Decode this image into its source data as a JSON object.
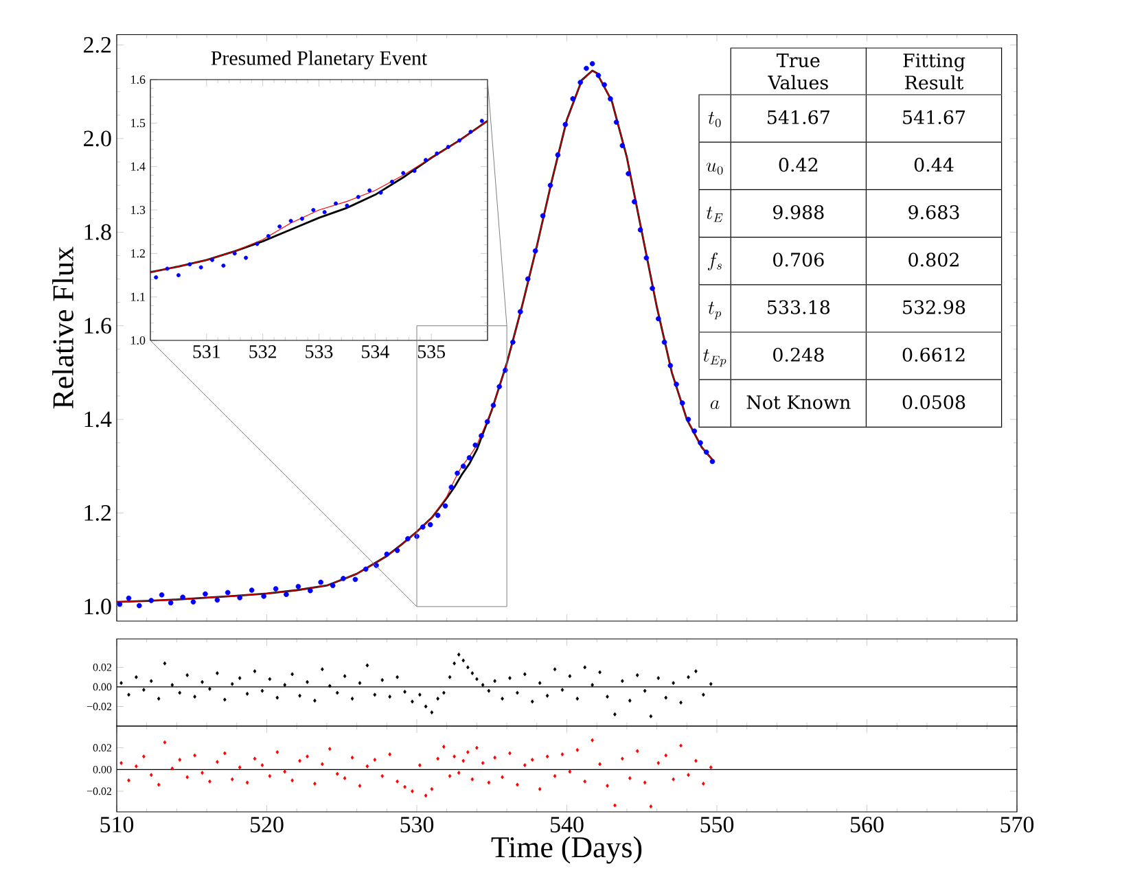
{
  "chart_data": [
    {
      "type": "scatter",
      "ylabel": "Relative Flux",
      "xlim": [
        510,
        570
      ],
      "ylim": [
        0.969,
        2.222
      ],
      "xticks": [
        510,
        520,
        530,
        540,
        550,
        560,
        570
      ],
      "yticks": [
        {
          "value": 1,
          "label": "1.0"
        },
        1.2,
        1.4,
        1.6,
        1.8,
        {
          "value": 2,
          "label": "2.0"
        },
        2.2
      ],
      "tick_labels": "y",
      "series": [
        {
          "type": "scatter",
          "marker": "circle",
          "color": "#0000ff",
          "x": [
            510.2,
            510.8,
            511.5,
            512.3,
            513.0,
            513.6,
            514.4,
            515.1,
            515.9,
            516.7,
            517.4,
            518.2,
            519.0,
            519.8,
            520.6,
            521.3,
            522.1,
            522.9,
            523.6,
            524.4,
            525.1,
            525.9,
            526.6,
            527.3,
            528.0,
            528.7,
            529.4,
            530.0,
            530.4,
            530.9,
            531.4,
            531.9,
            532.3,
            532.7,
            533.1,
            533.5,
            533.9,
            534.3,
            534.7,
            535.1,
            535.5,
            535.9,
            536.4,
            536.9,
            537.4,
            537.9,
            538.4,
            538.9,
            539.4,
            539.9,
            540.4,
            540.9,
            541.3,
            541.7,
            542.1,
            542.5,
            542.9,
            543.3,
            543.7,
            544.1,
            544.5,
            544.9,
            545.3,
            545.7,
            546.1,
            546.5,
            546.9,
            547.3,
            547.7,
            548.1,
            548.5,
            548.9,
            549.3,
            549.7
          ],
          "values": [
            1.005,
            1.018,
            1.002,
            1.013,
            1.025,
            1.008,
            1.02,
            1.01,
            1.027,
            1.014,
            1.03,
            1.019,
            1.035,
            1.022,
            1.038,
            1.026,
            1.043,
            1.034,
            1.052,
            1.045,
            1.06,
            1.058,
            1.08,
            1.088,
            1.112,
            1.12,
            1.145,
            1.15,
            1.17,
            1.175,
            1.195,
            1.215,
            1.255,
            1.285,
            1.3,
            1.318,
            1.345,
            1.365,
            1.395,
            1.43,
            1.47,
            1.505,
            1.565,
            1.63,
            1.7,
            1.76,
            1.835,
            1.9,
            1.965,
            2.03,
            2.085,
            2.12,
            2.15,
            2.16,
            2.135,
            2.115,
            2.085,
            2.035,
            1.985,
            1.925,
            1.865,
            1.805,
            1.745,
            1.68,
            1.615,
            1.565,
            1.515,
            1.475,
            1.435,
            1.4,
            1.375,
            1.35,
            1.33,
            1.31
          ]
        },
        {
          "type": "line",
          "marker": "none",
          "color": "#000000",
          "x": [
            510,
            512,
            514,
            516,
            518,
            520,
            522,
            524,
            526,
            527,
            528,
            529,
            530,
            531,
            532,
            532.5,
            533,
            533.5,
            534,
            535,
            536,
            537,
            538,
            539,
            540,
            541,
            541.7,
            542,
            543,
            544,
            545,
            546,
            547,
            548,
            549,
            549.8
          ],
          "values": [
            1.01,
            1.012,
            1.015,
            1.019,
            1.023,
            1.028,
            1.035,
            1.045,
            1.07,
            1.089,
            1.108,
            1.133,
            1.16,
            1.19,
            1.232,
            1.255,
            1.282,
            1.305,
            1.335,
            1.42,
            1.52,
            1.64,
            1.77,
            1.91,
            2.04,
            2.125,
            2.145,
            2.14,
            2.08,
            1.96,
            1.8,
            1.64,
            1.5,
            1.4,
            1.34,
            1.31
          ]
        },
        {
          "type": "line",
          "marker": "none",
          "color": "#ff0000",
          "x": [
            510,
            512,
            514,
            516,
            518,
            520,
            522,
            524,
            526,
            527,
            528,
            529,
            530,
            531,
            532,
            532.5,
            533,
            533.5,
            534,
            535,
            536,
            537,
            538,
            539,
            540,
            541,
            541.7,
            542,
            543,
            544,
            545,
            546,
            547,
            548,
            549,
            549.8
          ],
          "values": [
            1.01,
            1.012,
            1.015,
            1.019,
            1.023,
            1.028,
            1.035,
            1.045,
            1.07,
            1.089,
            1.108,
            1.133,
            1.16,
            1.19,
            1.235,
            1.27,
            1.3,
            1.32,
            1.345,
            1.42,
            1.52,
            1.64,
            1.77,
            1.91,
            2.04,
            2.125,
            2.145,
            2.14,
            2.08,
            1.96,
            1.8,
            1.64,
            1.5,
            1.4,
            1.34,
            1.31
          ]
        }
      ]
    },
    {
      "type": "scatter",
      "title": "Presumed Planetary Event",
      "xlim": [
        530,
        536
      ],
      "ylim": [
        1.0,
        1.6
      ],
      "xticks": [
        531,
        532,
        533,
        534,
        535
      ],
      "yticks": [
        {
          "value": 1,
          "label": "1.0"
        },
        1.1,
        1.2,
        1.3,
        1.4,
        1.5,
        1.6
      ],
      "series": [
        {
          "type": "scatter",
          "marker": "circle",
          "color": "#0000ff",
          "x": [
            530.1,
            530.3,
            530.5,
            530.7,
            530.9,
            531.1,
            531.3,
            531.5,
            531.7,
            531.9,
            532.1,
            532.3,
            532.5,
            532.7,
            532.9,
            533.1,
            533.3,
            533.5,
            533.7,
            533.9,
            534.1,
            534.3,
            534.5,
            534.7,
            534.9,
            535.1,
            535.3,
            535.5,
            535.7,
            535.9
          ],
          "values": [
            1.145,
            1.165,
            1.15,
            1.175,
            1.168,
            1.185,
            1.172,
            1.2,
            1.19,
            1.222,
            1.24,
            1.262,
            1.275,
            1.28,
            1.3,
            1.295,
            1.315,
            1.31,
            1.33,
            1.345,
            1.34,
            1.365,
            1.385,
            1.39,
            1.415,
            1.43,
            1.445,
            1.46,
            1.48,
            1.505
          ]
        },
        {
          "type": "line",
          "marker": "none",
          "color": "#000000",
          "x": [
            530,
            530.5,
            531,
            531.5,
            532,
            532.5,
            533,
            533.5,
            534,
            534.5,
            535,
            535.5,
            536
          ],
          "values": [
            1.157,
            1.17,
            1.185,
            1.205,
            1.228,
            1.255,
            1.282,
            1.305,
            1.335,
            1.375,
            1.42,
            1.46,
            1.505
          ]
        },
        {
          "type": "line",
          "marker": "none",
          "color": "#ff0000",
          "x": [
            530,
            530.5,
            531,
            531.5,
            532,
            532.5,
            533,
            533.5,
            534,
            534.5,
            535,
            535.5,
            536
          ],
          "values": [
            1.157,
            1.17,
            1.185,
            1.205,
            1.232,
            1.27,
            1.3,
            1.32,
            1.345,
            1.38,
            1.42,
            1.46,
            1.505
          ]
        }
      ]
    },
    {
      "type": "other",
      "categories": [
        "True Values",
        "Fitting Result"
      ],
      "y_categories": [
        "t_{0}",
        "u_{0}",
        "t_{E}",
        "f_{s}",
        "t_{p}",
        "t_{Ep}",
        "a"
      ],
      "cell_labels": [
        [
          "541.67",
          "541.67"
        ],
        [
          "0.42",
          "0.44"
        ],
        [
          "9.988",
          "9.683"
        ],
        [
          "0.706",
          "0.802"
        ],
        [
          "533.18",
          "532.98"
        ],
        [
          "0.248",
          "0.6612"
        ],
        [
          "Not Known",
          "0.0508"
        ]
      ]
    },
    {
      "type": "scatter",
      "xlim": [
        510,
        570
      ],
      "ylim": [
        -0.04,
        0.049
      ],
      "xticks": [
        510,
        520,
        530,
        540,
        550,
        560,
        570
      ],
      "yticks": [
        {
          "value": -0.02,
          "label": "−0.02"
        },
        {
          "value": 0,
          "label": "0.00"
        },
        0.02
      ],
      "tick_labels": "y",
      "marker": "diamond",
      "ref_lines": [
        {
          "axis": "y",
          "value": 0,
          "color": "#000000"
        }
      ],
      "x": [
        510.3,
        510.8,
        511.3,
        511.8,
        512.3,
        512.8,
        513.2,
        513.7,
        514.2,
        514.7,
        515.2,
        515.7,
        516.2,
        516.7,
        517.2,
        517.7,
        518.2,
        518.7,
        519.2,
        519.7,
        520.2,
        520.7,
        521.2,
        521.7,
        522.2,
        522.7,
        523.2,
        523.7,
        524.2,
        524.7,
        525.2,
        525.7,
        526.2,
        526.7,
        527.2,
        527.7,
        528.2,
        528.7,
        529.2,
        529.7,
        530.2,
        530.6,
        531.0,
        531.4,
        531.8,
        532.2,
        532.5,
        532.8,
        533.1,
        533.4,
        533.7,
        534.0,
        534.4,
        534.8,
        535.2,
        535.7,
        536.2,
        536.7,
        537.2,
        537.7,
        538.2,
        538.7,
        539.2,
        539.7,
        540.2,
        540.7,
        541.2,
        541.7,
        542.2,
        542.7,
        543.2,
        543.7,
        544.2,
        544.7,
        545.2,
        545.6,
        546.1,
        546.6,
        547.1,
        547.6,
        548.1,
        548.6,
        549.1,
        549.6
      ],
      "series": [
        {
          "color": "#000000",
          "values": [
            0.004,
            -0.008,
            0.01,
            -0.003,
            0.006,
            -0.012,
            0.024,
            0.002,
            -0.006,
            0.012,
            -0.01,
            0.005,
            -0.002,
            0.014,
            -0.013,
            0.003,
            0.009,
            -0.007,
            0.016,
            -0.004,
            0.008,
            -0.011,
            0.002,
            0.013,
            -0.009,
            0.005,
            -0.014,
            0.018,
            0.001,
            -0.006,
            0.011,
            -0.012,
            0.004,
            0.022,
            -0.008,
            0.007,
            -0.01,
            0.01,
            -0.005,
            -0.015,
            -0.008,
            -0.02,
            -0.026,
            -0.012,
            -0.006,
            0.01,
            0.024,
            0.033,
            0.027,
            0.02,
            0.014,
            0.008,
            0.002,
            -0.004,
            0.006,
            -0.012,
            0.009,
            -0.006,
            0.013,
            -0.015,
            0.004,
            -0.009,
            0.018,
            -0.003,
            0.011,
            -0.012,
            0.02,
            0.002,
            0.015,
            -0.01,
            -0.028,
            0.006,
            -0.014,
            0.012,
            -0.004,
            -0.03,
            0.009,
            -0.011,
            0.004,
            -0.016,
            0.01,
            0.016,
            -0.008,
            0.003
          ]
        }
      ]
    },
    {
      "type": "scatter",
      "xlabel": "Time (Days)",
      "xlim": [
        510,
        570
      ],
      "ylim": [
        -0.039,
        0.04
      ],
      "xticks": [
        510,
        520,
        530,
        540,
        550,
        560,
        570
      ],
      "yticks": [
        {
          "value": -0.02,
          "label": "−0.02"
        },
        {
          "value": 0,
          "label": "0.00"
        },
        0.02
      ],
      "marker": "diamond",
      "ref_lines": [
        {
          "axis": "y",
          "value": 0,
          "color": "#000000"
        }
      ],
      "x": [
        510.3,
        510.8,
        511.3,
        511.8,
        512.3,
        512.8,
        513.2,
        513.7,
        514.2,
        514.7,
        515.2,
        515.7,
        516.2,
        516.7,
        517.2,
        517.7,
        518.2,
        518.7,
        519.2,
        519.7,
        520.2,
        520.7,
        521.2,
        521.7,
        522.2,
        522.7,
        523.2,
        523.7,
        524.2,
        524.7,
        525.2,
        525.7,
        526.2,
        526.7,
        527.2,
        527.7,
        528.2,
        528.7,
        529.2,
        529.7,
        530.2,
        530.6,
        531.0,
        531.4,
        531.8,
        532.2,
        532.5,
        532.8,
        533.1,
        533.4,
        533.7,
        534.0,
        534.4,
        534.8,
        535.2,
        535.7,
        536.2,
        536.7,
        537.2,
        537.7,
        538.2,
        538.7,
        539.2,
        539.7,
        540.2,
        540.7,
        541.2,
        541.7,
        542.2,
        542.7,
        543.2,
        543.7,
        544.2,
        544.7,
        545.2,
        545.6,
        546.1,
        546.6,
        547.1,
        547.6,
        548.1,
        548.6,
        549.1,
        549.6
      ],
      "series": [
        {
          "color": "#ff0000",
          "values": [
            0.006,
            -0.01,
            0.003,
            0.012,
            -0.005,
            -0.014,
            0.025,
            0.001,
            0.009,
            -0.007,
            0.013,
            -0.003,
            -0.011,
            0.007,
            0.015,
            -0.009,
            0.002,
            -0.012,
            0.01,
            0.004,
            -0.006,
            0.016,
            -0.002,
            -0.01,
            0.008,
            0.012,
            -0.013,
            0.005,
            0.019,
            -0.004,
            -0.008,
            0.011,
            -0.015,
            0.003,
            0.009,
            -0.006,
            0.014,
            -0.011,
            -0.016,
            -0.02,
            0.004,
            -0.024,
            -0.018,
            0.01,
            0.021,
            -0.006,
            0.012,
            -0.003,
            0.008,
            0.016,
            -0.009,
            0.02,
            0.006,
            -0.012,
            0.011,
            -0.007,
            0.015,
            -0.014,
            0.004,
            0.009,
            -0.018,
            0.012,
            -0.006,
            0.014,
            -0.002,
            0.018,
            -0.011,
            0.027,
            0.005,
            -0.015,
            -0.033,
            0.01,
            -0.008,
            0.017,
            -0.012,
            -0.034,
            0.006,
            0.013,
            -0.009,
            0.022,
            -0.005,
            0.008,
            -0.013,
            0.002
          ]
        }
      ]
    }
  ]
}
